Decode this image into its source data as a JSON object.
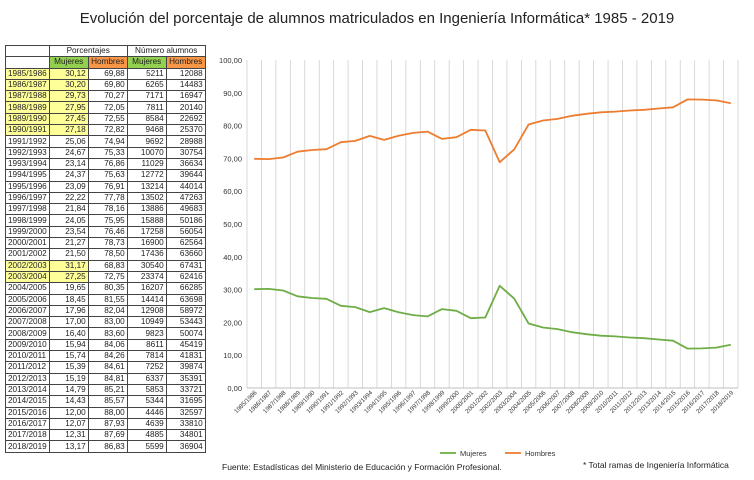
{
  "title": "Evolución del porcentaje de alumnos matriculados en Ingeniería Informática*  1985 - 2019",
  "table": {
    "group_headers": {
      "percent": "Porcentajes",
      "count": "Número alumnos"
    },
    "sub_headers": {
      "women": "Mujeres",
      "men": "Hombres"
    },
    "rows": [
      {
        "year": "1985/1986",
        "pm": "30,12",
        "ph": "69,88",
        "nm": "5211",
        "nh": "12088",
        "hl": true
      },
      {
        "year": "1986/1987",
        "pm": "30,20",
        "ph": "69,80",
        "nm": "6265",
        "nh": "14483",
        "hl": true
      },
      {
        "year": "1987/1988",
        "pm": "29,73",
        "ph": "70,27",
        "nm": "7171",
        "nh": "16947",
        "hl": true
      },
      {
        "year": "1988/1989",
        "pm": "27,95",
        "ph": "72,05",
        "nm": "7811",
        "nh": "20140",
        "hl": true
      },
      {
        "year": "1989/1990",
        "pm": "27,45",
        "ph": "72,55",
        "nm": "8584",
        "nh": "22692",
        "hl": true
      },
      {
        "year": "1990/1991",
        "pm": "27,18",
        "ph": "72,82",
        "nm": "9468",
        "nh": "25370",
        "hl": true
      },
      {
        "year": "1991/1992",
        "pm": "25,06",
        "ph": "74,94",
        "nm": "9692",
        "nh": "28988",
        "hl": false
      },
      {
        "year": "1992/1993",
        "pm": "24,67",
        "ph": "75,33",
        "nm": "10070",
        "nh": "30754",
        "hl": false
      },
      {
        "year": "1993/1994",
        "pm": "23,14",
        "ph": "76,86",
        "nm": "11029",
        "nh": "36634",
        "hl": false
      },
      {
        "year": "1994/1995",
        "pm": "24,37",
        "ph": "75,63",
        "nm": "12772",
        "nh": "39644",
        "hl": false
      },
      {
        "year": "1995/1996",
        "pm": "23,09",
        "ph": "76,91",
        "nm": "13214",
        "nh": "44014",
        "hl": false
      },
      {
        "year": "1996/1997",
        "pm": "22,22",
        "ph": "77,78",
        "nm": "13502",
        "nh": "47263",
        "hl": false
      },
      {
        "year": "1997/1998",
        "pm": "21,84",
        "ph": "78,16",
        "nm": "13886",
        "nh": "49683",
        "hl": false
      },
      {
        "year": "1998/1999",
        "pm": "24,05",
        "ph": "75,95",
        "nm": "15888",
        "nh": "50186",
        "hl": false
      },
      {
        "year": "1999/2000",
        "pm": "23,54",
        "ph": "76,46",
        "nm": "17258",
        "nh": "56054",
        "hl": false
      },
      {
        "year": "2000/2001",
        "pm": "21,27",
        "ph": "78,73",
        "nm": "16900",
        "nh": "62564",
        "hl": false
      },
      {
        "year": "2001/2002",
        "pm": "21,50",
        "ph": "78,50",
        "nm": "17436",
        "nh": "63660",
        "hl": false
      },
      {
        "year": "2002/2003",
        "pm": "31,17",
        "ph": "68,83",
        "nm": "30540",
        "nh": "67431",
        "hl": true
      },
      {
        "year": "2003/2004",
        "pm": "27,25",
        "ph": "72,75",
        "nm": "23374",
        "nh": "62416",
        "hl": true
      },
      {
        "year": "2004/2005",
        "pm": "19,65",
        "ph": "80,35",
        "nm": "16207",
        "nh": "66285",
        "hl": false
      },
      {
        "year": "2005/2006",
        "pm": "18,45",
        "ph": "81,55",
        "nm": "14414",
        "nh": "63698",
        "hl": false
      },
      {
        "year": "2006/2007",
        "pm": "17,96",
        "ph": "82,04",
        "nm": "12908",
        "nh": "58972",
        "hl": false
      },
      {
        "year": "2007/2008",
        "pm": "17,00",
        "ph": "83,00",
        "nm": "10949",
        "nh": "53443",
        "hl": false
      },
      {
        "year": "2008/2009",
        "pm": "16,40",
        "ph": "83,60",
        "nm": "9823",
        "nh": "50074",
        "hl": false
      },
      {
        "year": "2009/2010",
        "pm": "15,94",
        "ph": "84,06",
        "nm": "8611",
        "nh": "45419",
        "hl": false
      },
      {
        "year": "2010/2011",
        "pm": "15,74",
        "ph": "84,26",
        "nm": "7814",
        "nh": "41831",
        "hl": false
      },
      {
        "year": "2011/2012",
        "pm": "15,39",
        "ph": "84,61",
        "nm": "7252",
        "nh": "39874",
        "hl": false
      },
      {
        "year": "2012/2013",
        "pm": "15,19",
        "ph": "84,81",
        "nm": "6337",
        "nh": "35391",
        "hl": false
      },
      {
        "year": "2013/2014",
        "pm": "14,79",
        "ph": "85,21",
        "nm": "5853",
        "nh": "33721",
        "hl": false
      },
      {
        "year": "2014/2015",
        "pm": "14,43",
        "ph": "85,57",
        "nm": "5344",
        "nh": "31695",
        "hl": false
      },
      {
        "year": "2015/2016",
        "pm": "12,00",
        "ph": "88,00",
        "nm": "4446",
        "nh": "32597",
        "hl": false
      },
      {
        "year": "2016/2017",
        "pm": "12,07",
        "ph": "87,93",
        "nm": "4639",
        "nh": "33810",
        "hl": false
      },
      {
        "year": "2017/2018",
        "pm": "12,31",
        "ph": "87,69",
        "nm": "4885",
        "nh": "34801",
        "hl": false
      },
      {
        "year": "2018/2019",
        "pm": "13,17",
        "ph": "86,83",
        "nm": "5599",
        "nh": "36904",
        "hl": false
      }
    ]
  },
  "chart_data": {
    "type": "line",
    "x": [
      "1985/1986",
      "1986/1987",
      "1987/1988",
      "1988/1989",
      "1989/1990",
      "1990/1991",
      "1991/1992",
      "1992/1993",
      "1993/1994",
      "1994/1995",
      "1995/1996",
      "1996/1997",
      "1997/1998",
      "1998/1999",
      "1999/2000",
      "2000/2001",
      "2001/2002",
      "2002/2003",
      "2003/2004",
      "2004/2005",
      "2005/2006",
      "2006/2007",
      "2007/2008",
      "2008/2009",
      "2009/2010",
      "2010/2011",
      "2011/2012",
      "2012/2013",
      "2013/2014",
      "2014/2015",
      "2015/2016",
      "2016/2017",
      "2017/2018",
      "2018/2019"
    ],
    "series": [
      {
        "name": "Mujeres",
        "color": "#70ad47",
        "values": [
          30.12,
          30.2,
          29.73,
          27.95,
          27.45,
          27.18,
          25.06,
          24.67,
          23.14,
          24.37,
          23.09,
          22.22,
          21.84,
          24.05,
          23.54,
          21.27,
          21.5,
          31.17,
          27.25,
          19.65,
          18.45,
          17.96,
          17.0,
          16.4,
          15.94,
          15.74,
          15.39,
          15.19,
          14.79,
          14.43,
          12.0,
          12.07,
          12.31,
          13.17
        ]
      },
      {
        "name": "Hombres",
        "color": "#ed7d31",
        "values": [
          69.88,
          69.8,
          70.27,
          72.05,
          72.55,
          72.82,
          74.94,
          75.33,
          76.86,
          75.63,
          76.91,
          77.78,
          78.16,
          75.95,
          76.46,
          78.73,
          78.5,
          68.83,
          72.75,
          80.35,
          81.55,
          82.04,
          83.0,
          83.6,
          84.06,
          84.26,
          84.61,
          84.81,
          85.21,
          85.57,
          88.0,
          87.93,
          87.69,
          86.83
        ]
      }
    ],
    "yticks": [
      "0,00",
      "10,00",
      "20,00",
      "30,00",
      "40,00",
      "50,00",
      "60,00",
      "70,00",
      "80,00",
      "90,00",
      "100,00"
    ],
    "ylim": [
      0,
      100
    ],
    "grid": "vertical",
    "legend": "bottom"
  },
  "footer": "Fuente: Estadísticas del Ministerio de Educación y Formación Profesional.",
  "footnote": "* Total ramas de Ingeniería Informática"
}
